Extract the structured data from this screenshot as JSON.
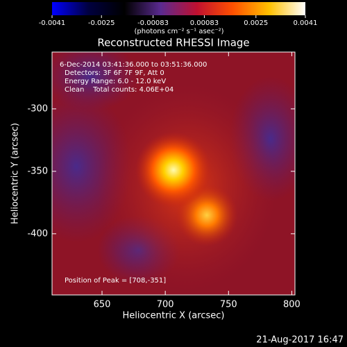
{
  "chart_data": {
    "type": "image",
    "title": "Reconstructed RHESSI Image",
    "colorbar_label": "(photons cm⁻² s⁻¹ asec⁻²)",
    "clim": [
      -0.0041,
      0.0041
    ],
    "cticks": [
      -0.0041,
      -0.0025,
      -0.00083,
      0.00083,
      0.0025,
      0.0041
    ],
    "colormap": [
      "#0000ff",
      "#000040",
      "#000000",
      "#5a2a90",
      "#c01030",
      "#ff5000",
      "#ffc000",
      "#ffffff"
    ],
    "x_label": "Heliocentric X (arcsec)",
    "y_label": "Heliocentric Y (arcsec)",
    "xlim": [
      610.5,
      802.5
    ],
    "xticks": [
      650,
      700,
      750,
      800
    ],
    "ylim": [
      -254.5,
      -449
    ],
    "yticks": [
      -300,
      -350,
      -400
    ],
    "annotations": [
      "6-Dec-2014 03:41:36.000 to 03:51:36.000",
      "Detectors: 3F 6F 7F 9F, Att 0",
      "Energy Range: 6.0 - 12.0 keV",
      "Clean    Total counts: 4.06E+04"
    ],
    "peak_label": "Position of Peak = [708,-351]",
    "timestamp": "21-Aug-2017 16:47"
  }
}
